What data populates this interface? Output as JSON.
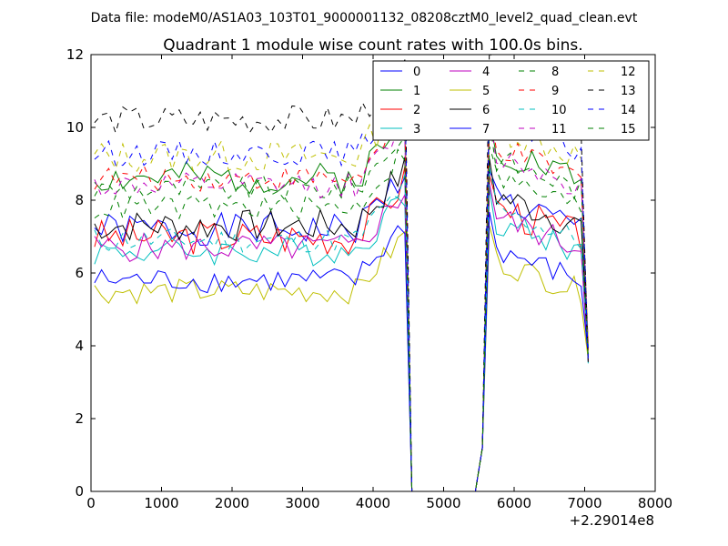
{
  "suptitle": "Data file: modeM0/AS1A03_103T01_9000001132_08208cztM0_level2_quad_clean.evt",
  "chart_data": {
    "type": "line",
    "title": "Quadrant 1 module wise count rates with 100.0s bins.",
    "xlabel": "",
    "ylabel": "",
    "x_offset_label": "+2.29014e8",
    "xlim": [
      0,
      8000
    ],
    "ylim": [
      0,
      12
    ],
    "xticks": [
      0,
      1000,
      2000,
      3000,
      4000,
      5000,
      6000,
      7000,
      8000
    ],
    "xtick_labels": [
      "0",
      "1000",
      "2000",
      "3000",
      "4000",
      "5000",
      "6000",
      "7000",
      "8000"
    ],
    "yticks": [
      0,
      2,
      4,
      6,
      8,
      10,
      12
    ],
    "ytick_labels": [
      "0",
      "2",
      "4",
      "6",
      "8",
      "10",
      "12"
    ],
    "grid": false,
    "legend": {
      "placement": "top-right",
      "columns": 4
    },
    "bin_width": 100,
    "segment1_x": [
      50,
      150,
      250,
      350,
      450,
      550,
      650,
      750,
      850,
      950,
      1050,
      1150,
      1250,
      1350,
      1450,
      1550,
      1650,
      1750,
      1850,
      1950,
      2050,
      2150,
      2250,
      2350,
      2450,
      2550,
      2650,
      2750,
      2850,
      2950,
      3050,
      3150,
      3250,
      3350,
      3450,
      3550,
      3650,
      3750,
      3850,
      3950,
      4050,
      4150,
      4250,
      4350,
      4450
    ],
    "segment2_x": [
      5650,
      5750,
      5850,
      5950,
      6050,
      6150,
      6250,
      6350,
      6450,
      6550,
      6650,
      6750,
      6850,
      6950,
      7050
    ],
    "gap_x": [
      4550,
      4650,
      5450,
      5550
    ],
    "gap_y": [
      0,
      0,
      0,
      1.2
    ],
    "series": [
      {
        "name": "0",
        "color": "#0000ff",
        "dash": "solid",
        "base": 7.2,
        "amp": 0.45,
        "seed": 1
      },
      {
        "name": "1",
        "color": "#008000",
        "dash": "solid",
        "base": 8.6,
        "amp": 0.45,
        "seed": 2
      },
      {
        "name": "2",
        "color": "#ff0000",
        "dash": "solid",
        "base": 7.0,
        "amp": 0.5,
        "seed": 3
      },
      {
        "name": "3",
        "color": "#00bfbf",
        "dash": "solid",
        "base": 6.6,
        "amp": 0.4,
        "seed": 4
      },
      {
        "name": "4",
        "color": "#bf00bf",
        "dash": "solid",
        "base": 6.7,
        "amp": 0.4,
        "seed": 5
      },
      {
        "name": "5",
        "color": "#bfbf00",
        "dash": "solid",
        "base": 5.5,
        "amp": 0.35,
        "seed": 6
      },
      {
        "name": "6",
        "color": "#000000",
        "dash": "solid",
        "base": 7.3,
        "amp": 0.45,
        "seed": 7
      },
      {
        "name": "7",
        "color": "#0000ff",
        "dash": "solid",
        "base": 5.8,
        "amp": 0.35,
        "seed": 8
      },
      {
        "name": "8",
        "color": "#008000",
        "dash": "dashed",
        "base": 8.3,
        "amp": 0.35,
        "seed": 9
      },
      {
        "name": "9",
        "color": "#ff0000",
        "dash": "dashed",
        "base": 8.6,
        "amp": 0.35,
        "seed": 10
      },
      {
        "name": "10",
        "color": "#00bfbf",
        "dash": "dashed",
        "base": 6.9,
        "amp": 0.35,
        "seed": 11
      },
      {
        "name": "11",
        "color": "#bf00bf",
        "dash": "dashed",
        "base": 8.4,
        "amp": 0.35,
        "seed": 12
      },
      {
        "name": "12",
        "color": "#bfbf00",
        "dash": "dashed",
        "base": 9.2,
        "amp": 0.45,
        "seed": 13
      },
      {
        "name": "13",
        "color": "#000000",
        "dash": "dashed",
        "base": 10.2,
        "amp": 0.4,
        "seed": 14
      },
      {
        "name": "14",
        "color": "#0000ff",
        "dash": "dashed",
        "base": 9.3,
        "amp": 0.35,
        "seed": 15
      },
      {
        "name": "15",
        "color": "#008000",
        "dash": "dashed",
        "base": 7.8,
        "amp": 0.35,
        "seed": 16
      }
    ]
  }
}
